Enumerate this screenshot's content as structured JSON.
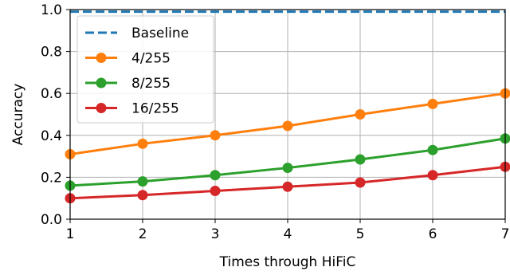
{
  "chart_data": {
    "type": "line",
    "xlabel": "Times through HiFiC",
    "ylabel": "Accuracy",
    "xlim": [
      1,
      7
    ],
    "ylim": [
      0.0,
      1.0
    ],
    "x_ticks": [
      "1",
      "2",
      "3",
      "4",
      "5",
      "6",
      "7"
    ],
    "y_ticks": [
      "0.0",
      "0.2",
      "0.4",
      "0.6",
      "0.8",
      "1.0"
    ],
    "grid": true,
    "legend_position": "top-left",
    "x": [
      1,
      2,
      3,
      4,
      5,
      6,
      7
    ],
    "series": [
      {
        "name": "Baseline",
        "style": "dashed",
        "color": "#1f77b4",
        "markers": false,
        "values": [
          0.99,
          0.99,
          0.99,
          0.99,
          0.99,
          0.99,
          0.99
        ]
      },
      {
        "name": "4/255",
        "style": "solid",
        "color": "#ff7f0e",
        "markers": true,
        "values": [
          0.31,
          0.36,
          0.4,
          0.445,
          0.5,
          0.55,
          0.6
        ]
      },
      {
        "name": "8/255",
        "style": "solid",
        "color": "#2ca02c",
        "markers": true,
        "values": [
          0.16,
          0.18,
          0.21,
          0.245,
          0.285,
          0.33,
          0.385
        ]
      },
      {
        "name": "16/255",
        "style": "solid",
        "color": "#d62728",
        "markers": true,
        "values": [
          0.1,
          0.115,
          0.135,
          0.155,
          0.175,
          0.21,
          0.25
        ]
      }
    ]
  }
}
